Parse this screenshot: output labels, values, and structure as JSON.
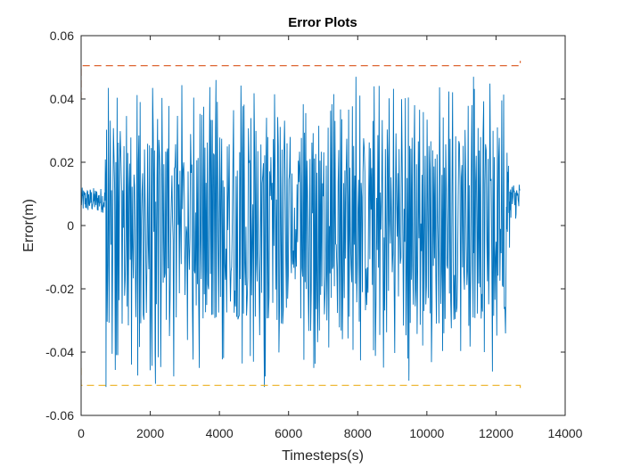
{
  "chart_data": {
    "type": "line",
    "title": "Error Plots",
    "xlabel": "Timesteps(s)",
    "ylabel": "Error(m)",
    "xlim": [
      0,
      14000
    ],
    "ylim": [
      -0.06,
      0.06
    ],
    "x_ticks": [
      0,
      2000,
      4000,
      6000,
      8000,
      10000,
      12000,
      14000
    ],
    "x_tick_labels": [
      "0",
      "2000",
      "4000",
      "6000",
      "8000",
      "10000",
      "12000",
      "14000"
    ],
    "y_ticks": [
      -0.06,
      -0.04,
      -0.02,
      0,
      0.02,
      0.04,
      0.06
    ],
    "y_tick_labels": [
      "-0.06",
      "-0.04",
      "-0.02",
      "0",
      "0.02",
      "0.04",
      "0.06"
    ],
    "grid": false,
    "box": true,
    "series": [
      {
        "color": "#0072BD",
        "style": "solid",
        "x_range": [
          0,
          12700
        ],
        "segments": [
          {
            "x_range": [
              0,
              700
            ],
            "mean": 0.008,
            "amplitude": 0.004
          },
          {
            "x_range": [
              700,
              12300
            ],
            "mean": 0.0,
            "amplitude": 0.045,
            "peak_max": 0.047,
            "peak_min": -0.051
          },
          {
            "x_range": [
              12300,
              12700
            ],
            "mean": 0.008,
            "amplitude": 0.006
          }
        ]
      },
      {
        "color": "#D95319",
        "style": "dashed",
        "x": [
          0,
          0,
          12700,
          12700
        ],
        "y": [
          0.04,
          0.0505,
          0.0505,
          0.052
        ]
      },
      {
        "color": "#EDB120",
        "style": "dashed",
        "x": [
          0,
          0,
          12700,
          12700
        ],
        "y": [
          -0.045,
          -0.0505,
          -0.0505,
          -0.052
        ]
      }
    ]
  }
}
